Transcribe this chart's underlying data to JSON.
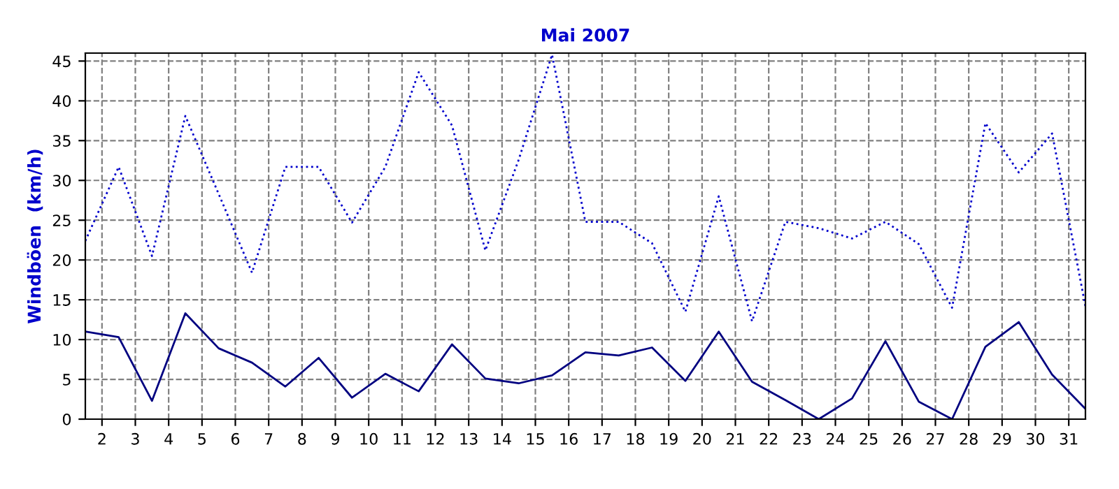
{
  "chart_data": {
    "type": "line",
    "title": "Mai 2007",
    "ylabel": "Windböen  (km/h)",
    "x": [
      1.5,
      2.5,
      3.5,
      4.5,
      5.5,
      6.5,
      7.5,
      8.5,
      9.5,
      10.5,
      11.5,
      12.5,
      13.5,
      14.5,
      15.5,
      16.5,
      17.5,
      18.5,
      19.5,
      20.5,
      21.5,
      22.5,
      23.5,
      24.5,
      25.5,
      26.5,
      27.5,
      28.5,
      29.5,
      30.5,
      31.5
    ],
    "series": [
      {
        "color": "#0000cc",
        "line_style": "dotted",
        "values": [
          22.4,
          31.7,
          20.5,
          38.1,
          28.3,
          18.4,
          31.7,
          31.7,
          24.7,
          31.7,
          43.6,
          36.9,
          21.2,
          32.6,
          45.8,
          24.8,
          24.8,
          22.1,
          13.5,
          28.0,
          12.3,
          24.8,
          24.0,
          22.7,
          24.8,
          22.0,
          14.0,
          37.2,
          31.0,
          35.9,
          14.2
        ]
      },
      {
        "color": "#000080",
        "line_style": "solid",
        "values": [
          11.0,
          10.3,
          2.3,
          13.3,
          8.9,
          7.1,
          4.1,
          7.7,
          2.7,
          5.7,
          3.5,
          9.4,
          5.1,
          4.5,
          5.5,
          8.4,
          8.0,
          9.0,
          4.8,
          11.0,
          4.7,
          2.4,
          0,
          2.6,
          9.8,
          2.2,
          0,
          9.1,
          12.2,
          5.6,
          1.3
        ]
      }
    ],
    "xlim": [
      1.5,
      31.5
    ],
    "xticks": [
      2,
      3,
      4,
      5,
      6,
      7,
      8,
      9,
      10,
      11,
      12,
      13,
      14,
      15,
      16,
      17,
      18,
      19,
      20,
      21,
      22,
      23,
      24,
      25,
      26,
      27,
      28,
      29,
      30,
      31
    ],
    "ylim": [
      0,
      46
    ],
    "yticks": [
      0,
      5,
      10,
      15,
      20,
      25,
      30,
      35,
      40,
      45
    ],
    "grid": true,
    "legend": false
  }
}
